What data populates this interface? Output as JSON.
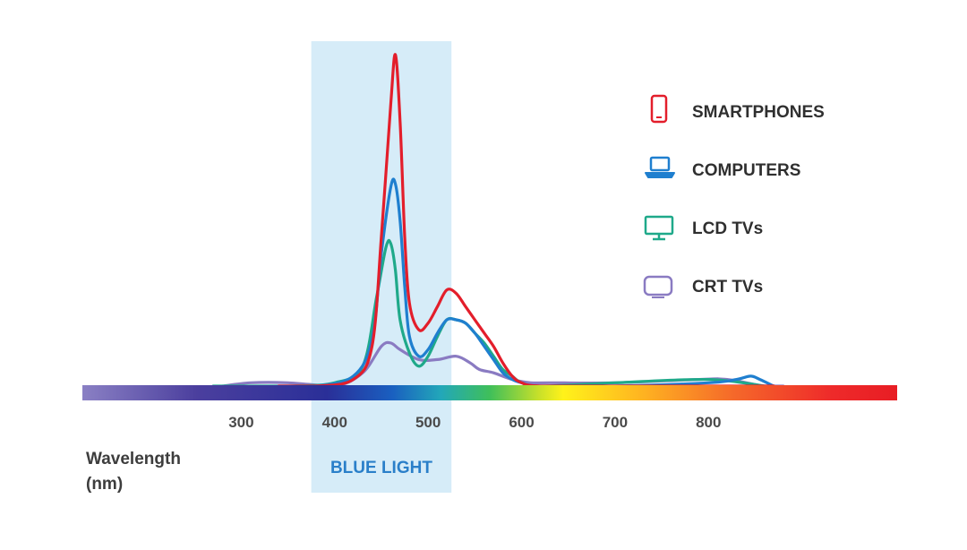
{
  "colors": {
    "smartphones": "#e31e2b",
    "computers": "#1f7fcf",
    "lcd_tvs": "#1fa98a",
    "crt_tvs": "#8a7bc2",
    "blue_band": "#d6ecf8",
    "blue_band_label": "#2a7fc9"
  },
  "chart_data": {
    "type": "line",
    "title": "",
    "xlabel": "Wavelength",
    "xlabel_unit": "(nm)",
    "ylabel": "",
    "xlim": [
      200,
      1000
    ],
    "ylim": [
      0,
      1
    ],
    "grid": false,
    "legend_position": "top-right",
    "x_ticks": [
      "300",
      "400",
      "500",
      "600",
      "700",
      "800"
    ],
    "highlight": {
      "label": "BLUE LIGHT",
      "x_start": 375,
      "x_end": 525
    },
    "series": [
      {
        "name": "SMARTPHONES",
        "icon": "smartphone-icon",
        "color_key": "smartphones",
        "x": [
          340,
          380,
          420,
          440,
          450,
          460,
          465,
          470,
          475,
          480,
          490,
          500,
          510,
          520,
          530,
          540,
          550,
          560,
          570,
          580,
          590,
          600,
          620,
          700,
          800,
          850,
          870
        ],
        "y": [
          0.0,
          0.0,
          0.02,
          0.12,
          0.45,
          0.85,
          1.0,
          0.8,
          0.45,
          0.25,
          0.17,
          0.19,
          0.24,
          0.29,
          0.28,
          0.24,
          0.2,
          0.16,
          0.12,
          0.07,
          0.03,
          0.01,
          0.0,
          0.0,
          0.0,
          0.0,
          0.0
        ]
      },
      {
        "name": "COMPUTERS",
        "icon": "laptop-icon",
        "color_key": "computers",
        "x": [
          340,
          380,
          420,
          440,
          450,
          460,
          465,
          470,
          475,
          480,
          490,
          500,
          510,
          520,
          530,
          540,
          550,
          560,
          570,
          580,
          590,
          600,
          620,
          700,
          800,
          830,
          845,
          855,
          870
        ],
        "y": [
          0.0,
          0.0,
          0.03,
          0.14,
          0.4,
          0.6,
          0.61,
          0.5,
          0.3,
          0.15,
          0.09,
          0.11,
          0.16,
          0.2,
          0.2,
          0.19,
          0.16,
          0.12,
          0.08,
          0.04,
          0.02,
          0.01,
          0.0,
          0.0,
          0.01,
          0.02,
          0.03,
          0.02,
          0.0
        ]
      },
      {
        "name": "LCD TVs",
        "icon": "monitor-icon",
        "color_key": "lcd_tvs",
        "x": [
          270,
          350,
          400,
          430,
          445,
          455,
          460,
          465,
          470,
          480,
          490,
          500,
          510,
          520,
          530,
          540,
          550,
          560,
          570,
          580,
          590,
          600,
          620,
          700,
          800,
          860
        ],
        "y": [
          0.0,
          0.0,
          0.01,
          0.06,
          0.27,
          0.42,
          0.43,
          0.35,
          0.2,
          0.1,
          0.06,
          0.09,
          0.15,
          0.2,
          0.2,
          0.19,
          0.16,
          0.13,
          0.09,
          0.05,
          0.03,
          0.01,
          0.0,
          0.01,
          0.02,
          0.0
        ]
      },
      {
        "name": "CRT TVs",
        "icon": "crt-tv-icon",
        "color_key": "crt_tvs",
        "x": [
          280,
          310,
          350,
          400,
          430,
          450,
          460,
          470,
          490,
          510,
          530,
          545,
          555,
          570,
          590,
          610,
          630,
          700,
          790,
          820,
          860,
          880
        ],
        "y": [
          0.0,
          0.01,
          0.01,
          0.0,
          0.04,
          0.12,
          0.13,
          0.11,
          0.08,
          0.08,
          0.09,
          0.07,
          0.05,
          0.04,
          0.02,
          0.01,
          0.01,
          0.01,
          0.02,
          0.02,
          0.0,
          0.0
        ]
      }
    ]
  }
}
